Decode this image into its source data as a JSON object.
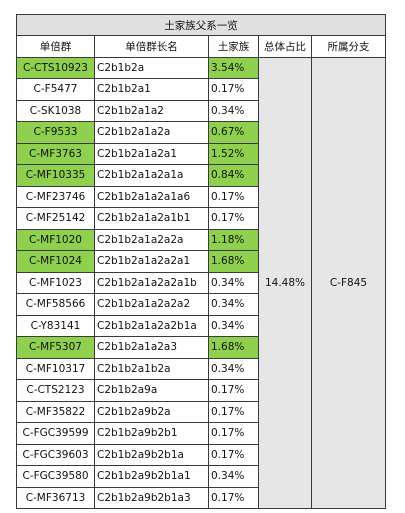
{
  "table": {
    "title": "土家族父系一览",
    "headers": [
      "单倍群",
      "单倍群长名",
      "土家族",
      "总体占比",
      "所属分支"
    ],
    "rows": [
      {
        "haplogroup": "C-CTS10923",
        "long_name": "C2b1b2a",
        "tujia": "3.54%",
        "highlight": true
      },
      {
        "haplogroup": "C-F5477",
        "long_name": "C2b1b2a1",
        "tujia": "0.17%",
        "highlight": false
      },
      {
        "haplogroup": "C-SK1038",
        "long_name": "C2b1b2a1a2",
        "tujia": "0.34%",
        "highlight": false
      },
      {
        "haplogroup": "C-F9533",
        "long_name": "C2b1b2a1a2a",
        "tujia": "0.67%",
        "highlight": true
      },
      {
        "haplogroup": "C-MF3763",
        "long_name": "C2b1b2a1a2a1",
        "tujia": "1.52%",
        "highlight": true
      },
      {
        "haplogroup": "C-MF10335",
        "long_name": "C2b1b2a1a2a1a",
        "tujia": "0.84%",
        "highlight": true
      },
      {
        "haplogroup": "C-MF23746",
        "long_name": "C2b1b2a1a2a1a6",
        "tujia": "0.17%",
        "highlight": false
      },
      {
        "haplogroup": "C-MF25142",
        "long_name": "C2b1b2a1a2a1b1",
        "tujia": "0.17%",
        "highlight": false
      },
      {
        "haplogroup": "C-MF1020",
        "long_name": "C2b1b2a1a2a2a",
        "tujia": "1.18%",
        "highlight": true
      },
      {
        "haplogroup": "C-MF1024",
        "long_name": "C2b1b2a1a2a2a1",
        "tujia": "1.68%",
        "highlight": true
      },
      {
        "haplogroup": "C-MF1023",
        "long_name": "C2b1b2a1a2a2a1b",
        "tujia": "0.34%",
        "highlight": false
      },
      {
        "haplogroup": "C-MF58566",
        "long_name": "C2b1b2a1a2a2a2",
        "tujia": "0.34%",
        "highlight": false
      },
      {
        "haplogroup": "C-Y83141",
        "long_name": "C2b1b2a1a2a2b1a",
        "tujia": "0.34%",
        "highlight": false
      },
      {
        "haplogroup": "C-MF5307",
        "long_name": "C2b1b2a1a2a3",
        "tujia": "1.68%",
        "highlight": true
      },
      {
        "haplogroup": "C-MF10317",
        "long_name": "C2b1b2a1b2a",
        "tujia": "0.34%",
        "highlight": false
      },
      {
        "haplogroup": "C-CTS2123",
        "long_name": "C2b1b2a9a",
        "tujia": "0.17%",
        "highlight": false
      },
      {
        "haplogroup": "C-MF35822",
        "long_name": "C2b1b2a9b2a",
        "tujia": "0.17%",
        "highlight": false
      },
      {
        "haplogroup": "C-FGC39599",
        "long_name": "C2b1b2a9b2b1",
        "tujia": "0.17%",
        "highlight": false
      },
      {
        "haplogroup": "C-FGC39603",
        "long_name": "C2b1b2a9b2b1a",
        "tujia": "0.17%",
        "highlight": false
      },
      {
        "haplogroup": "C-FGC39580",
        "long_name": "C2b1b2a9b2b1a1",
        "tujia": "0.34%",
        "highlight": false
      },
      {
        "haplogroup": "C-MF36713",
        "long_name": "C2b1b2a9b2b1a3",
        "tujia": "0.17%",
        "highlight": false
      }
    ],
    "total_share": "14.48%",
    "branch": "C-F845",
    "colors": {
      "highlight": "#8fd04e",
      "title_bg": "#e0e0e0",
      "merged_bg": "#e6e6e6",
      "border": "#3a3a3a"
    }
  }
}
